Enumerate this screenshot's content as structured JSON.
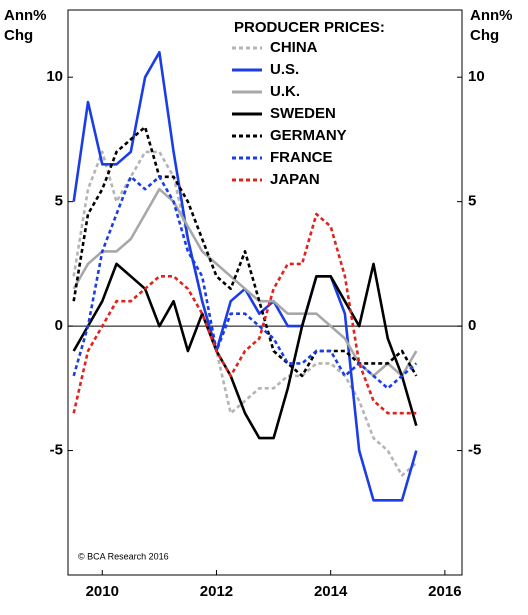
{
  "chart_data": {
    "type": "line",
    "legend_title": "PRODUCER PRICES:",
    "ylabel_lines": [
      "Ann%",
      "Chg"
    ],
    "y2label_lines": [
      "Ann%",
      "Chg"
    ],
    "note": "© BCA Research 2016",
    "x": [
      2009.5,
      2009.75,
      2010,
      2010.25,
      2010.5,
      2010.75,
      2011,
      2011.25,
      2011.5,
      2011.75,
      2012,
      2012.25,
      2012.5,
      2012.75,
      2013,
      2013.25,
      2013.5,
      2013.75,
      2014,
      2014.25,
      2014.5,
      2014.75,
      2015,
      2015.25,
      2015.5
    ],
    "xlim": [
      2009.4,
      2016.3
    ],
    "xticks": [
      2010,
      2012,
      2014,
      2016
    ],
    "ylim": [
      -10,
      12.7
    ],
    "yticks": [
      -5,
      0,
      5,
      10
    ],
    "y2lim": [
      -10,
      12.7
    ],
    "y2ticks": [
      -5,
      0,
      5,
      10
    ],
    "zero_line": true,
    "legend": "top-right",
    "series": [
      {
        "name": "CHINA",
        "color": "#b4b4b4",
        "style": "dashed",
        "values": [
          2,
          5.5,
          7,
          5,
          6,
          7,
          7,
          6,
          3.5,
          1,
          -1,
          -3.5,
          -3,
          -2.5,
          -2.5,
          -2,
          -2,
          -1.5,
          -1.5,
          -2,
          -3,
          -4.5,
          -5,
          -6,
          -5.5
        ]
      },
      {
        "name": "U.S.",
        "color": "#1b3de6",
        "style": "solid",
        "values": [
          5,
          9,
          6.5,
          6.5,
          7,
          10,
          11,
          7,
          3.5,
          1,
          -1,
          1,
          1.5,
          0.5,
          1,
          0,
          0,
          2,
          2,
          0.5,
          -5,
          -7,
          -7,
          -7,
          -5
        ]
      },
      {
        "name": "U.K.",
        "color": "#a8a8a8",
        "style": "solid",
        "values": [
          1.5,
          2.5,
          3,
          3,
          3.5,
          4.5,
          5.5,
          5,
          4,
          3,
          2.5,
          2,
          1.5,
          1,
          1,
          0.5,
          0.5,
          0.5,
          0,
          -0.5,
          -1.5,
          -2,
          -1.5,
          -2,
          -1
        ]
      },
      {
        "name": "SWEDEN",
        "color": "#000000",
        "style": "solid",
        "values": [
          -1,
          0,
          1,
          2.5,
          2,
          1.5,
          0,
          1,
          -1,
          0.5,
          -1,
          -2,
          -3.5,
          -4.5,
          -4.5,
          -2.5,
          0,
          2,
          2,
          1,
          0,
          2.5,
          -0.5,
          -2,
          -4
        ]
      },
      {
        "name": "GERMANY",
        "color": "#000000",
        "style": "dashed",
        "values": [
          1,
          4.5,
          5.5,
          7,
          7.5,
          8,
          6,
          6,
          5,
          3.5,
          2,
          1.5,
          3,
          1,
          -1,
          -1.5,
          -2,
          -1,
          -1,
          -1,
          -1.5,
          -1.5,
          -1.5,
          -1,
          -2
        ]
      },
      {
        "name": "FRANCE",
        "color": "#1b3de6",
        "style": "dashed",
        "values": [
          -2,
          0,
          3,
          4.5,
          6,
          5.5,
          6,
          5,
          3,
          2,
          -1,
          0.5,
          0.5,
          0,
          -0.5,
          -1.5,
          -1.5,
          -1,
          -1,
          -2,
          -1.5,
          -2,
          -2.5,
          -2,
          -1.5
        ]
      },
      {
        "name": "JAPAN",
        "color": "#e0231c",
        "style": "dashed",
        "values": [
          -3.5,
          -1,
          0,
          1,
          1,
          1.5,
          2,
          2,
          1.5,
          0.5,
          -1,
          -2,
          -1,
          -0.5,
          1.5,
          2.5,
          2.5,
          4.5,
          4,
          2,
          -1.5,
          -3,
          -3.5,
          -3.5,
          -3.5
        ]
      }
    ]
  }
}
